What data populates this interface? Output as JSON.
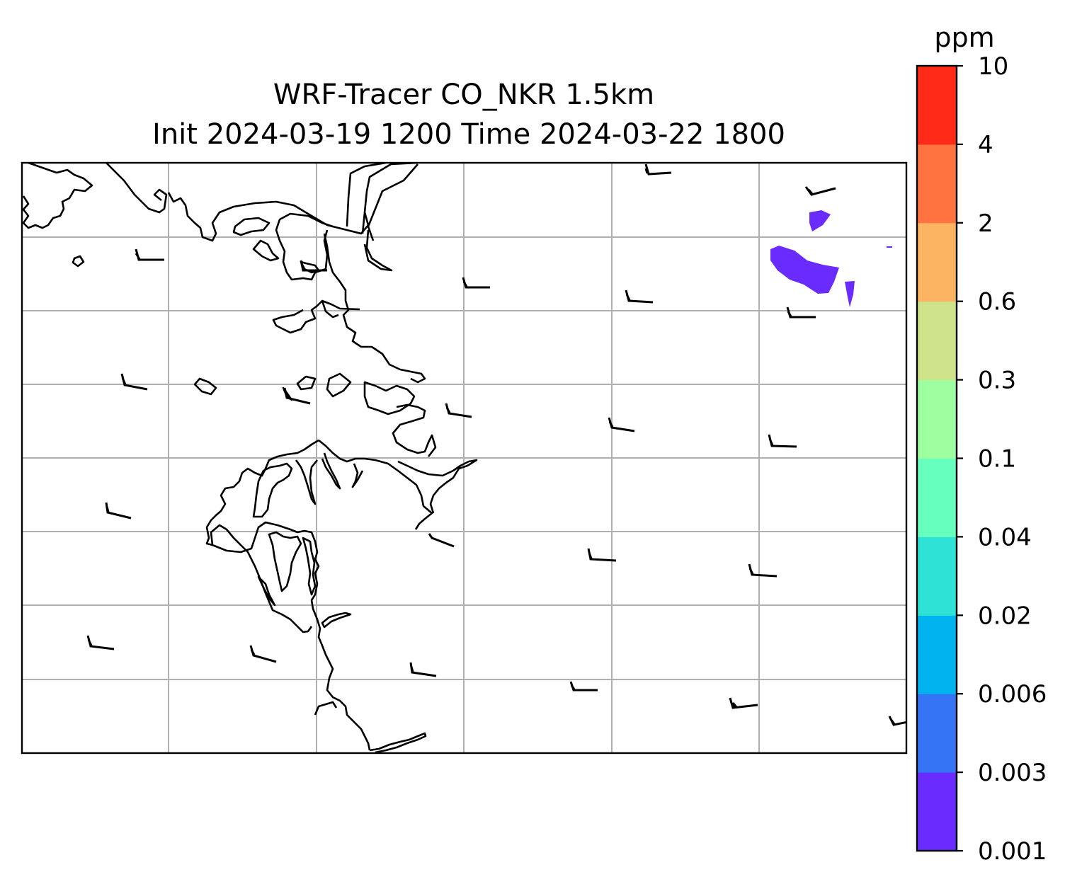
{
  "title": {
    "line1": "WRF-Tracer CO_NKR 1.5km",
    "line2": "Init 2024-03-19 1200 Time 2024-03-22 1800"
  },
  "colorbar": {
    "unit": "ppm",
    "levels": [
      "0.001",
      "0.003",
      "0.006",
      "0.02",
      "0.04",
      "0.1",
      "0.3",
      "0.6",
      "2",
      "4",
      "10"
    ],
    "colors": [
      "#6a2bff",
      "#3574f5",
      "#00b3ee",
      "#2ee3d6",
      "#66ffbd",
      "#9dffa0",
      "#cfe38a",
      "#fdb462",
      "#ff7340",
      "#ff2a17"
    ]
  },
  "map": {
    "gridlines": true,
    "coastline_color": "#000000",
    "gridline_color": "#b0b0b0",
    "wind_barbs": true
  }
}
